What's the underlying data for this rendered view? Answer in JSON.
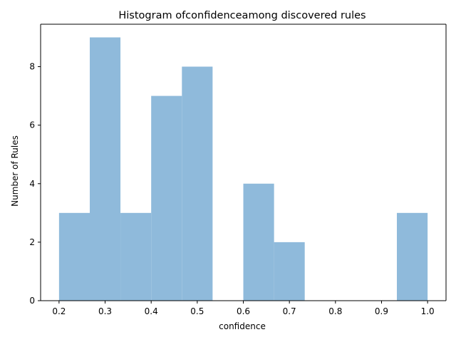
{
  "chart_data": {
    "type": "bar",
    "title": "Histogram ofconfidenceamong discovered rules",
    "xlabel": "confidence",
    "ylabel": "Number of Rules",
    "bin_edges": [
      0.2,
      0.2667,
      0.3333,
      0.4,
      0.4667,
      0.5333,
      0.6,
      0.6667,
      0.7333,
      0.8,
      0.8667,
      0.9333,
      1.0
    ],
    "values": [
      3,
      9,
      3,
      7,
      8,
      0,
      4,
      2,
      0,
      0,
      0,
      3
    ],
    "xlim": [
      0.16,
      1.04
    ],
    "ylim": [
      0,
      9.45
    ],
    "xticks": [
      0.2,
      0.3,
      0.4,
      0.5,
      0.6,
      0.7,
      0.8,
      0.9,
      1.0
    ],
    "xtick_labels": [
      "0.2",
      "0.3",
      "0.4",
      "0.5",
      "0.6",
      "0.7",
      "0.8",
      "0.9",
      "1.0"
    ],
    "yticks": [
      0,
      2,
      4,
      6,
      8
    ],
    "ytick_labels": [
      "0",
      "2",
      "4",
      "6",
      "8"
    ],
    "bar_color": "#8fbadb",
    "grid": false,
    "legend": "none"
  }
}
